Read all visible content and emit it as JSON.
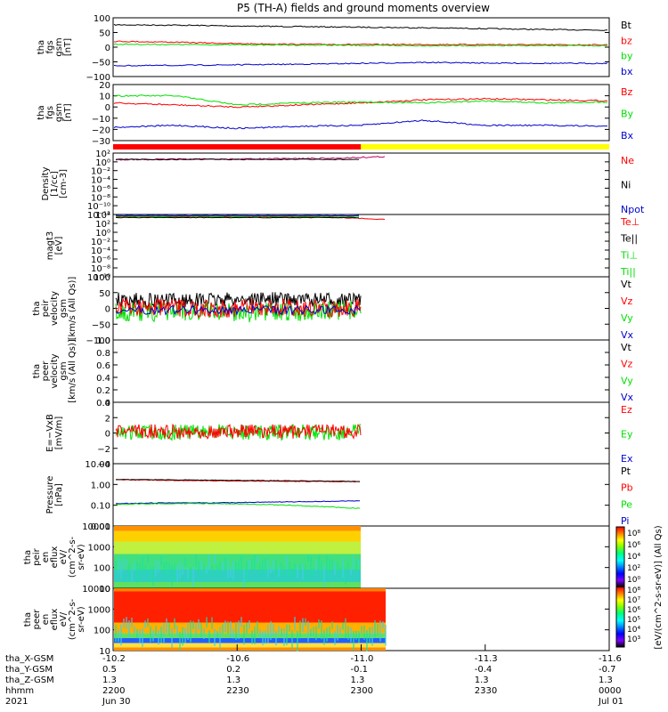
{
  "title": "P5 (TH-A) fields and ground moments overview",
  "colors": {
    "black": "#000000",
    "red": "#ff0000",
    "green": "#00e000",
    "blue": "#0000cc",
    "yellow": "#ffff00",
    "magenta": "#c00060"
  },
  "panels": [
    {
      "id": "fgs1",
      "ylabel": [
        "tha",
        "fgs",
        "gsm",
        "[nT]"
      ],
      "yticks": [
        "100",
        "50",
        "0",
        "−50",
        "−100"
      ],
      "legend": [
        {
          "t": "Bt",
          "c": "black"
        },
        {
          "t": "bz",
          "c": "red"
        },
        {
          "t": "by",
          "c": "green"
        },
        {
          "t": "bx",
          "c": "blue"
        }
      ]
    },
    {
      "id": "fgs2",
      "ylabel": [
        "tha",
        "fgs",
        "gsm",
        "[nT]"
      ],
      "yticks": [
        "20",
        "10",
        "0",
        "−10",
        "−20",
        "−30"
      ],
      "legend": [
        {
          "t": "Bz",
          "c": "red"
        },
        {
          "t": "By",
          "c": "green"
        },
        {
          "t": "Bx",
          "c": "blue"
        }
      ]
    },
    {
      "id": "density",
      "ylabel": [
        "Density",
        "[1/cc]",
        "[cm-3]"
      ],
      "yticks": [
        "10²",
        "10⁰",
        "10⁻²",
        "10⁻⁴",
        "10⁻⁶",
        "10⁻⁸",
        "10⁻¹⁰",
        "10⁻¹²"
      ],
      "legend": [
        {
          "t": "Ne",
          "c": "red"
        },
        {
          "t": "Ni",
          "c": "black"
        },
        {
          "t": "Npot",
          "c": "blue"
        }
      ]
    },
    {
      "id": "temp",
      "ylabel": [
        "magt3",
        "[eV]"
      ],
      "yticks": [
        "10⁴",
        "10²",
        "10⁰",
        "10⁻²",
        "10⁻⁴",
        "10⁻⁶",
        "10⁻⁸",
        "10⁻¹⁰"
      ],
      "legend": [
        {
          "t": "Te⊥",
          "c": "red"
        },
        {
          "t": "Te||",
          "c": "black"
        },
        {
          "t": "Ti⊥",
          "c": "green"
        },
        {
          "t": "Ti||",
          "c": "green"
        }
      ]
    },
    {
      "id": "vi",
      "ylabel": [
        "tha",
        "peir",
        "velocity",
        "gsm",
        "[km/s (All Qs)]"
      ],
      "yticks": [
        "100",
        "50",
        "0",
        "−50",
        "−100"
      ],
      "legend": [
        {
          "t": "Vt",
          "c": "black"
        },
        {
          "t": "Vz",
          "c": "red"
        },
        {
          "t": "Vy",
          "c": "green"
        },
        {
          "t": "Vx",
          "c": "blue"
        }
      ]
    },
    {
      "id": "ve",
      "ylabel": [
        "tha",
        "peer",
        "velocity",
        "gsm",
        "[km/s (All Qs)]"
      ],
      "yticks": [
        "1.0",
        "0.8",
        "0.6",
        "0.4",
        "0.2",
        "0.0"
      ],
      "legend": [
        {
          "t": "Vt",
          "c": "black"
        },
        {
          "t": "Vz",
          "c": "red"
        },
        {
          "t": "Vy",
          "c": "green"
        },
        {
          "t": "Vx",
          "c": "blue"
        }
      ]
    },
    {
      "id": "efield",
      "ylabel": [
        "E=−VxB",
        "[mV/m]"
      ],
      "yticks": [
        "4",
        "2",
        "0",
        "−2",
        "−4"
      ],
      "legend": [
        {
          "t": "Ez",
          "c": "red"
        },
        {
          "t": "Ey",
          "c": "green"
        },
        {
          "t": "Ex",
          "c": "blue"
        }
      ]
    },
    {
      "id": "pressure",
      "ylabel": [
        "Pressure",
        "[nPa]"
      ],
      "yticks": [
        "10.00",
        "1.00",
        "0.10",
        "0.01"
      ],
      "legend": [
        {
          "t": "Pt",
          "c": "black"
        },
        {
          "t": "Pb",
          "c": "red"
        },
        {
          "t": "Pe",
          "c": "green"
        },
        {
          "t": "Pi",
          "c": "blue"
        }
      ]
    },
    {
      "id": "spec_i",
      "ylabel": [
        "tha",
        "peir",
        "en",
        "eflux",
        "eV/",
        "(cm^2-s-",
        "sr-eV)"
      ],
      "yticks": [
        "10000",
        "1000",
        "100",
        "10"
      ]
    },
    {
      "id": "spec_e",
      "ylabel": [
        "tha",
        "peer",
        "en",
        "eflux",
        "eV/",
        "(cm^2-s-",
        "sr-eV)"
      ],
      "yticks": [
        "10000",
        "1000",
        "100",
        "10"
      ]
    }
  ],
  "colorbar": {
    "label": "[eV/(cm^2-s-sr-eV)] (All Qs)",
    "ticks_top": [
      "10⁸",
      "10⁶",
      "10⁴",
      "10²",
      "10⁰"
    ],
    "ticks_bottom": [
      "10⁸",
      "10⁷",
      "10⁶",
      "10⁵",
      "10⁴",
      "10³"
    ]
  },
  "footer": {
    "row_labels": [
      "tha_X-GSM",
      "tha_Y-GSM",
      "tha_Z-GSM",
      "hhmm",
      "2021"
    ],
    "columns": [
      {
        "vals": [
          "-10.2",
          "0.5",
          "1.3",
          "2200",
          "Jun 30"
        ]
      },
      {
        "vals": [
          "-10.6",
          "0.2",
          "1.3",
          "2230",
          ""
        ]
      },
      {
        "vals": [
          "-11.0",
          "-0.1",
          "1.3",
          "2300",
          ""
        ]
      },
      {
        "vals": [
          "-11.3",
          "-0.4",
          "1.3",
          "2330",
          ""
        ]
      },
      {
        "vals": [
          "-11.6",
          "-0.7",
          "1.3",
          "0000",
          "Jul 01"
        ]
      }
    ]
  },
  "chart_data": {
    "type": "line",
    "title": "P5 (TH-A) fields and ground moments overview",
    "x_ticks": [
      "2200",
      "2230",
      "2300",
      "2330",
      "0000"
    ],
    "x_range_hhmm": [
      "2200",
      "0000"
    ],
    "series": [
      {
        "panel": "fgs1",
        "name": "Bt",
        "approx": [
          76,
          75,
          72,
          70,
          68,
          66,
          63,
          60,
          58
        ]
      },
      {
        "panel": "fgs1",
        "name": "bz",
        "approx": [
          20,
          17,
          12,
          10,
          9,
          9,
          9,
          8,
          8
        ]
      },
      {
        "panel": "fgs1",
        "name": "by",
        "approx": [
          10,
          9,
          8,
          7,
          6,
          5,
          5,
          5,
          5
        ]
      },
      {
        "panel": "fgs1",
        "name": "bx",
        "approx": [
          -63,
          -62,
          -60,
          -58,
          -55,
          -52,
          -54,
          -55,
          -55
        ]
      },
      {
        "panel": "fgs2",
        "name": "Bz",
        "approx": [
          2,
          0,
          -2,
          0,
          2,
          5,
          6,
          5,
          4
        ]
      },
      {
        "panel": "fgs2",
        "name": "By",
        "approx": [
          9,
          9,
          0,
          2,
          3,
          2,
          4,
          2,
          3
        ]
      },
      {
        "panel": "fgs2",
        "name": "Bx",
        "approx": [
          -22,
          -20,
          -23,
          -21,
          -20,
          -15,
          -20,
          -20,
          -21
        ]
      },
      {
        "panel": "density",
        "name": "Ne",
        "approx_log10": [
          0.5,
          0.6,
          0.6,
          0.7,
          0.8,
          1.2
        ]
      },
      {
        "panel": "temp",
        "name": "Te⊥",
        "approx_log10": [
          3.5,
          3.5,
          3.5,
          3.5,
          3.4,
          2.9
        ]
      },
      {
        "panel": "vi",
        "name": "Vt",
        "approx": [
          28,
          25,
          27,
          30,
          28,
          25
        ]
      },
      {
        "panel": "vi",
        "name": "Vz",
        "approx": [
          5,
          2,
          -2,
          3,
          0,
          2
        ]
      },
      {
        "panel": "vi",
        "name": "Vy",
        "approx": [
          -10,
          -12,
          -8,
          -15,
          -10,
          -5
        ]
      },
      {
        "panel": "efield",
        "name": "Ez",
        "approx": [
          0.5,
          1.0,
          0.3,
          0.0,
          0.2,
          0.5
        ]
      },
      {
        "panel": "efield",
        "name": "Ey",
        "approx": [
          0.0,
          0.5,
          0.3,
          0.2,
          1.0,
          1.5
        ]
      },
      {
        "panel": "pressure",
        "name": "Pb",
        "approx": [
          1.7,
          1.6,
          1.5,
          1.45,
          1.4,
          1.35
        ]
      },
      {
        "panel": "pressure",
        "name": "Pi",
        "approx": [
          0.12,
          0.13,
          0.13,
          0.14,
          0.15,
          0.16
        ]
      },
      {
        "panel": "pressure",
        "name": "Pe",
        "approx": [
          0.11,
          0.12,
          0.12,
          0.11,
          0.09,
          0.07
        ]
      }
    ]
  }
}
